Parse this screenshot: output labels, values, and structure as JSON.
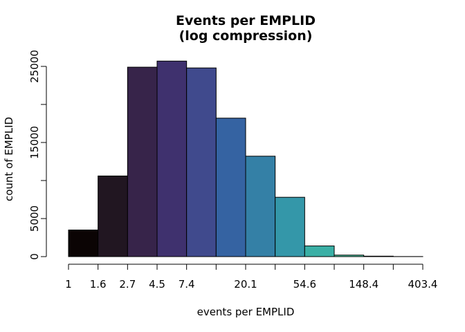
{
  "chart_data": {
    "type": "bar",
    "title": "Events per EMPLID",
    "subtitle": "(log compression)",
    "xlabel": "events per EMPLID",
    "ylabel": "count of EMPLID",
    "x_ticks": [
      "1",
      "1.6",
      "2.7",
      "4.5",
      "7.4",
      "",
      "20.1",
      "",
      "54.6",
      "",
      "148.4",
      "",
      "403.4"
    ],
    "y_ticks": [
      0,
      5000,
      10000,
      15000,
      20000,
      25000
    ],
    "y_tick_labels": [
      "0",
      "5000",
      "",
      "15000",
      "",
      "25000"
    ],
    "ylim": [
      0,
      25000
    ],
    "bins": [
      {
        "value": 3500,
        "color": "#0b0404"
      },
      {
        "value": 10600,
        "color": "#211621"
      },
      {
        "value": 24900,
        "color": "#37244a"
      },
      {
        "value": 25700,
        "color": "#3f316e"
      },
      {
        "value": 24800,
        "color": "#404a8d"
      },
      {
        "value": 18200,
        "color": "#3563a2"
      },
      {
        "value": 13200,
        "color": "#3480a6"
      },
      {
        "value": 7800,
        "color": "#3497a9"
      },
      {
        "value": 1400,
        "color": "#3aafa5"
      },
      {
        "value": 200,
        "color": "#4bc6a0"
      },
      {
        "value": 60,
        "color": "#6dd5a0"
      },
      {
        "value": 10,
        "color": "#a0e0b0"
      }
    ],
    "grid": false,
    "legend": "none"
  }
}
